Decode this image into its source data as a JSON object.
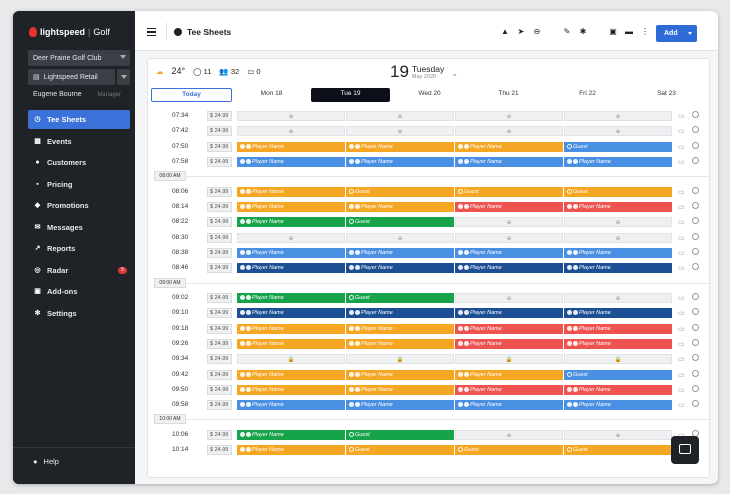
{
  "brand": {
    "name": "lightspeed",
    "product": "Golf"
  },
  "club_select": "Deer Prairie Golf Club",
  "retail_select": "Lightspeed Retail",
  "user": {
    "name": "Eugene Bourne",
    "role": "Manager"
  },
  "nav": [
    {
      "label": "Tee Sheets",
      "icon": "clock-icon",
      "glyph": "◷",
      "active": true
    },
    {
      "label": "Events",
      "icon": "calendar-icon",
      "glyph": "▦"
    },
    {
      "label": "Customers",
      "icon": "user-icon",
      "glyph": "●"
    },
    {
      "label": "Pricing",
      "icon": "price-icon",
      "glyph": "▪"
    },
    {
      "label": "Promotions",
      "icon": "tag-icon",
      "glyph": "◆"
    },
    {
      "label": "Messages",
      "icon": "message-icon",
      "glyph": "✉"
    },
    {
      "label": "Reports",
      "icon": "chart-icon",
      "glyph": "↗"
    },
    {
      "label": "Radar",
      "icon": "radar-icon",
      "glyph": "◎",
      "badge": "5"
    },
    {
      "label": "Add-ons",
      "icon": "addons-icon",
      "glyph": "▣"
    },
    {
      "label": "Settings",
      "icon": "gear-icon",
      "glyph": "✻"
    }
  ],
  "help_label": "Help",
  "topbar": {
    "title": "Tee Sheets",
    "add_label": "Add"
  },
  "weather": {
    "temp": "24°",
    "c1": "11",
    "c2": "32",
    "c3": "0"
  },
  "date": {
    "day": "19",
    "weekday": "Tuesday",
    "month_year": "May 2020"
  },
  "days": [
    "Today",
    "Mon 18",
    "Tue 19",
    "Wed 20",
    "Thu 21",
    "Fri 22",
    "Sat 23"
  ],
  "price": "$ 24.99",
  "hours": [
    {
      "label": "08:00 AM"
    },
    {
      "label": "09:00 AM"
    },
    {
      "label": "10:00 AM"
    }
  ],
  "rows": [
    {
      "time": "07:34",
      "slots": [
        "e",
        "e",
        "e",
        "e"
      ]
    },
    {
      "time": "07:42",
      "slots": [
        "e",
        "e",
        "e",
        "e"
      ]
    },
    {
      "time": "07:50",
      "slots": [
        "orange",
        "orange",
        "orange",
        "blue-g"
      ]
    },
    {
      "time": "07:58",
      "slots": [
        "blue",
        "blue",
        "blue",
        "blue"
      ]
    },
    {
      "hour": "08:00 AM"
    },
    {
      "time": "08:06",
      "slots": [
        "orange",
        "orange-g",
        "orange-g",
        "orange-g"
      ]
    },
    {
      "time": "08:14",
      "slots": [
        "orange",
        "orange",
        "red",
        "red"
      ]
    },
    {
      "time": "08:22",
      "slots": [
        "green",
        "green-g",
        "e",
        "e"
      ]
    },
    {
      "time": "08:30",
      "slots": [
        "e",
        "e",
        "e",
        "e"
      ]
    },
    {
      "time": "08:38",
      "slots": [
        "blue",
        "blue",
        "blue",
        "blue"
      ]
    },
    {
      "time": "08:46",
      "slots": [
        "navy",
        "navy",
        "navy",
        "navy"
      ]
    },
    {
      "hour": "09:00 AM"
    },
    {
      "time": "09:02",
      "slots": [
        "green",
        "green-g",
        "e",
        "e"
      ]
    },
    {
      "time": "09:10",
      "slots": [
        "navy",
        "navy",
        "navy",
        "navy"
      ]
    },
    {
      "time": "09:18",
      "slots": [
        "orange",
        "orange",
        "red",
        "red"
      ]
    },
    {
      "time": "09:26",
      "slots": [
        "orange",
        "orange",
        "red",
        "red"
      ]
    },
    {
      "time": "09:34",
      "slots": [
        "lock",
        "lock",
        "lock",
        "lock"
      ]
    },
    {
      "time": "09:42",
      "slots": [
        "orange",
        "orange",
        "orange",
        "blue-g"
      ]
    },
    {
      "time": "09:50",
      "slots": [
        "orange",
        "orange",
        "red",
        "red"
      ]
    },
    {
      "time": "09:58",
      "slots": [
        "blue",
        "blue",
        "blue",
        "blue"
      ]
    },
    {
      "hour": "10:00 AM"
    },
    {
      "time": "10:06",
      "slots": [
        "green",
        "green-g",
        "e",
        "e"
      ]
    },
    {
      "time": "10:14",
      "slots": [
        "orange",
        "orange-g",
        "orange-g",
        "orange-g"
      ]
    }
  ],
  "player_label": "Player Name",
  "guest_label": "Guest"
}
